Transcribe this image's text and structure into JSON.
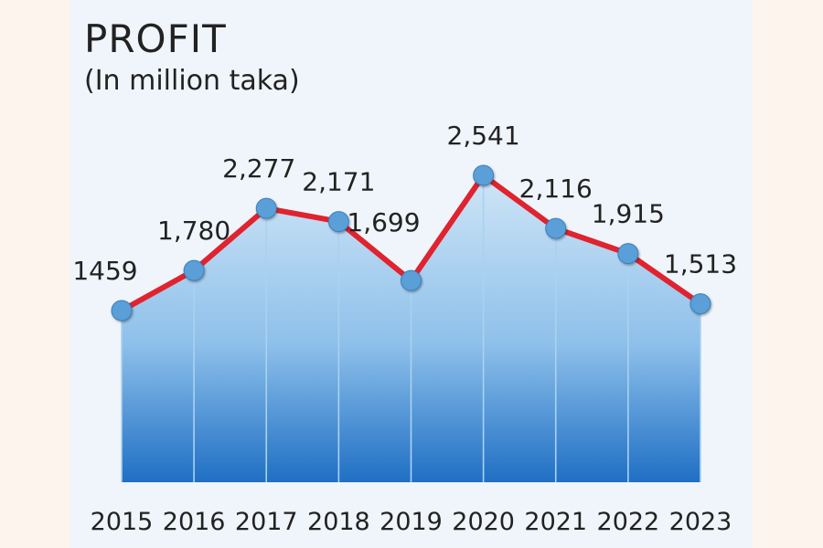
{
  "chart_data": {
    "type": "area",
    "title": "PROFIT",
    "subtitle": "(In million taka)",
    "categories": [
      "2015",
      "2016",
      "2017",
      "2018",
      "2019",
      "2020",
      "2021",
      "2022",
      "2023"
    ],
    "values": [
      1459,
      1780,
      2277,
      2171,
      1699,
      2541,
      2116,
      1915,
      1513
    ],
    "value_labels": [
      "1459",
      "1,780",
      "2,277",
      "2,171",
      "1,699",
      "2,541",
      "2,116",
      "1,915",
      "1,513"
    ],
    "ylim": [
      0,
      2541
    ],
    "xlabel": "",
    "ylabel": "",
    "grid": false,
    "colors": {
      "line": "#e0232e",
      "marker": "#5a9fd8",
      "area_top": "#cfe5f7",
      "area_bottom": "#1f6fc4",
      "text": "#222222",
      "drop_line": "#a9d2f0"
    }
  }
}
